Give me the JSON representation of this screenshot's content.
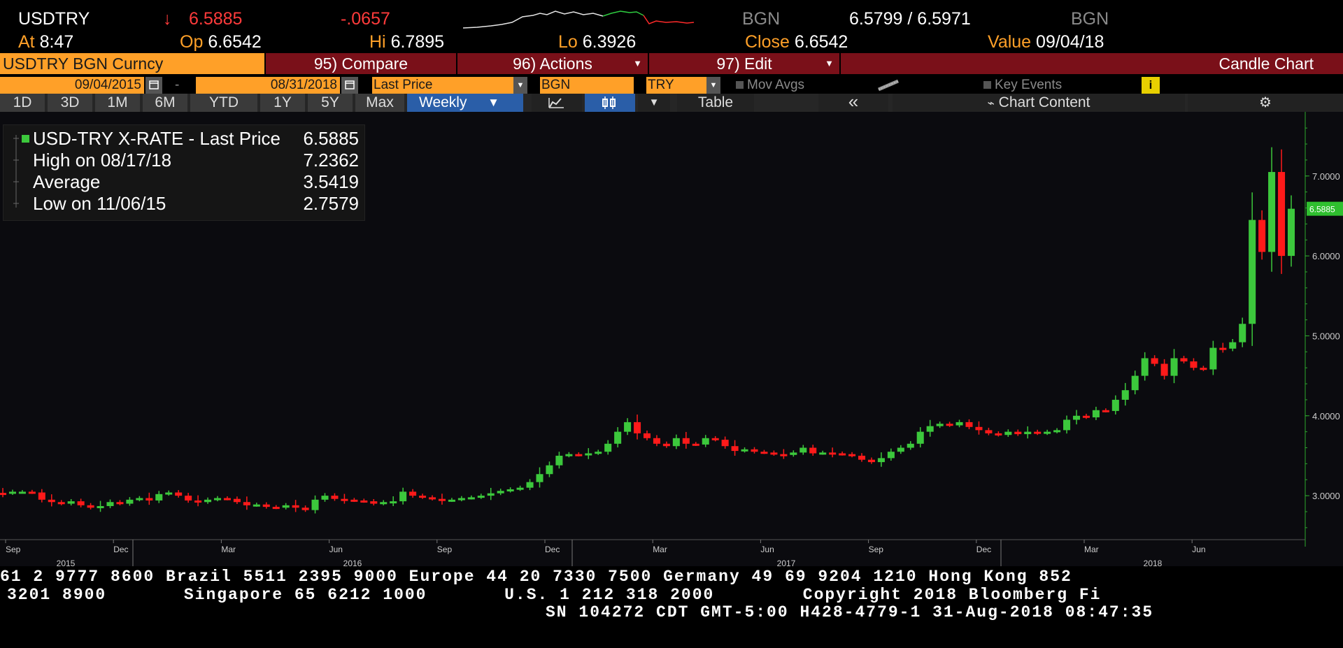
{
  "quote": {
    "ticker": "USDTRY",
    "arrow": "↓",
    "last": "6.5885",
    "change": "-.0657",
    "source1": "BGN",
    "bid_ask": "6.5799 / 6.5971",
    "source2": "BGN",
    "at_label": "At",
    "at_value": "8:47",
    "op_label": "Op",
    "op_value": "6.6542",
    "hi_label": "Hi",
    "hi_value": "6.7895",
    "lo_label": "Lo",
    "lo_value": "6.3926",
    "close_label": "Close",
    "close_value": "6.6542",
    "value_label": "Value",
    "value_value": "09/04/18"
  },
  "menu": {
    "security": "USDTRY BGN Curncy",
    "compare": "95) Compare",
    "actions": "96) Actions",
    "edit": "97) Edit",
    "chart_type": "Candle Chart"
  },
  "controls": {
    "start_date": "09/04/2015",
    "dash": "-",
    "end_date": "08/31/2018",
    "field": "Last Price",
    "source": "BGN",
    "currency": "TRY",
    "mov_avgs": "Mov Avgs",
    "key_events": "Key Events"
  },
  "periods": [
    "1D",
    "3D",
    "1M",
    "6M",
    "YTD",
    "1Y",
    "5Y",
    "Max"
  ],
  "frequency": "Weekly",
  "toolbar": {
    "table": "Table",
    "collapse": "«",
    "chart_content": "Chart Content"
  },
  "legend": {
    "series": "USD-TRY X-RATE - Last Price",
    "series_value": "6.5885",
    "high_label": "High on 08/17/18",
    "high_value": "7.2362",
    "avg_label": "Average",
    "avg_value": "3.5419",
    "low_label": "Low on 11/06/15",
    "low_value": "2.7579"
  },
  "chart_data": {
    "type": "candlestick",
    "frequency": "weekly",
    "ylim": [
      2.45,
      7.75
    ],
    "yticks": [
      3.0,
      4.0,
      5.0,
      6.0,
      7.0
    ],
    "ytick_labels": [
      "3.0000",
      "4.0000",
      "5.0000",
      "6.0000",
      "7.0000"
    ],
    "last_price_label": "6.5885",
    "x_month_labels": [
      "Sep",
      "Dec",
      "Mar",
      "Jun",
      "Sep",
      "Dec",
      "Mar",
      "Jun",
      "Sep",
      "Dec",
      "Mar",
      "Jun"
    ],
    "x_year_labels": [
      "2015",
      "2016",
      "2017",
      "2018"
    ],
    "colors": {
      "up": "#3cc83c",
      "down": "#ff1a1a",
      "background": "#0b0b0f",
      "axis": "#2ea82e"
    },
    "closes": [
      3.03,
      3.05,
      3.05,
      3.04,
      2.95,
      2.92,
      2.9,
      2.93,
      2.88,
      2.85,
      2.87,
      2.92,
      2.9,
      2.95,
      2.97,
      2.94,
      3.02,
      3.04,
      3.0,
      2.94,
      2.92,
      2.95,
      2.97,
      2.96,
      2.92,
      2.88,
      2.89,
      2.86,
      2.85,
      2.88,
      2.85,
      2.82,
      2.95,
      3.0,
      2.96,
      2.95,
      2.94,
      2.93,
      2.9,
      2.92,
      2.93,
      3.05,
      3.0,
      2.98,
      2.96,
      2.94,
      2.95,
      2.97,
      2.98,
      3.0,
      3.03,
      3.06,
      3.08,
      3.1,
      3.17,
      3.27,
      3.38,
      3.5,
      3.52,
      3.51,
      3.53,
      3.55,
      3.65,
      3.8,
      3.92,
      3.78,
      3.72,
      3.65,
      3.62,
      3.72,
      3.65,
      3.64,
      3.72,
      3.7,
      3.62,
      3.56,
      3.58,
      3.55,
      3.54,
      3.52,
      3.51,
      3.54,
      3.6,
      3.53,
      3.54,
      3.53,
      3.52,
      3.5,
      3.45,
      3.42,
      3.47,
      3.55,
      3.6,
      3.65,
      3.8,
      3.87,
      3.9,
      3.88,
      3.92,
      3.86,
      3.82,
      3.78,
      3.76,
      3.8,
      3.77,
      3.8,
      3.78,
      3.8,
      3.82,
      3.95,
      4.0,
      3.98,
      4.07,
      4.06,
      4.2,
      4.32,
      4.5,
      4.72,
      4.65,
      4.5,
      4.72,
      4.68,
      4.6,
      4.58,
      4.85,
      4.84,
      4.92,
      5.15,
      6.45,
      6.05,
      7.05,
      6.0,
      6.59
    ]
  },
  "footer": {
    "line1": "61 2 9777 8600 Brazil 5511 2395 9000 Europe 44 20 7330 7500 Germany 49 69 9204 1210 Hong Kong 852",
    "line2": "3201 8900       Singapore 65 6212 1000       U.S. 1 212 318 2000        Copyright 2018 Bloomberg Fi",
    "line3": "SN 104272 CDT  GMT-5:00 H428-4779-1 31-Aug-2018 08:47:35"
  }
}
